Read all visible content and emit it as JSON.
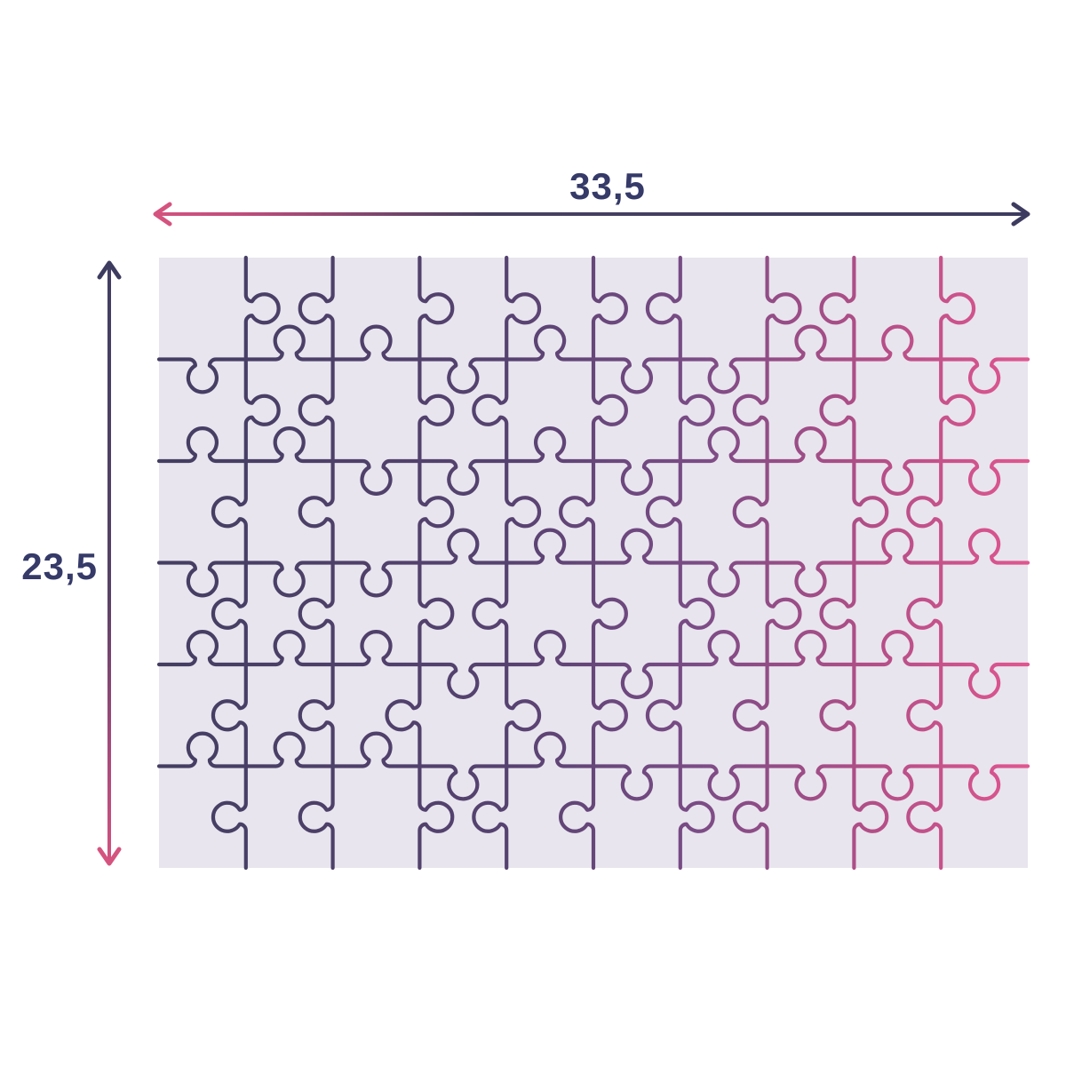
{
  "diagram": {
    "title": "puzzle dimensions diagram",
    "width_label": "33,5",
    "height_label": "23,5"
  },
  "puzzle": {
    "columns": 10,
    "rows": 6,
    "board_background": "#e8e5ee",
    "line_gradient_colors": [
      "#443e62",
      "#564270",
      "#7b4c86",
      "#b34e87",
      "#e0568f"
    ],
    "line_gradient_stops": [
      0,
      0.4,
      0.62,
      0.82,
      1
    ]
  },
  "colors": {
    "navy": "#3d3b5f",
    "pink": "#d5537f",
    "label_text": "#353a68",
    "page_background": "#ffffff"
  }
}
